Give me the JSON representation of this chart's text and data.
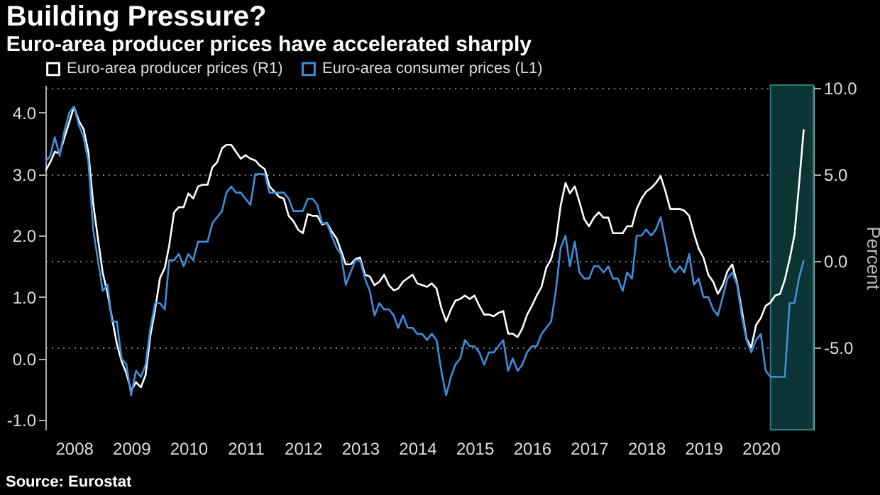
{
  "chart_data": {
    "type": "line",
    "title": "Building Pressure?",
    "subtitle": "Euro-area producer prices have accelerated sharply",
    "y2label": "Percent",
    "annotations": [
      "Source: Eurostat"
    ],
    "x": [
      "2008-01",
      "2008-02",
      "2008-03",
      "2008-04",
      "2008-05",
      "2008-06",
      "2008-07",
      "2008-08",
      "2008-09",
      "2008-10",
      "2008-11",
      "2008-12",
      "2009-01",
      "2009-02",
      "2009-03",
      "2009-04",
      "2009-05",
      "2009-06",
      "2009-07",
      "2009-08",
      "2009-09",
      "2009-10",
      "2009-11",
      "2009-12",
      "2010-01",
      "2010-02",
      "2010-03",
      "2010-04",
      "2010-05",
      "2010-06",
      "2010-07",
      "2010-08",
      "2010-09",
      "2010-10",
      "2010-11",
      "2010-12",
      "2011-01",
      "2011-02",
      "2011-03",
      "2011-04",
      "2011-05",
      "2011-06",
      "2011-07",
      "2011-08",
      "2011-09",
      "2011-10",
      "2011-11",
      "2011-12",
      "2012-01",
      "2012-02",
      "2012-03",
      "2012-04",
      "2012-05",
      "2012-06",
      "2012-07",
      "2012-08",
      "2012-09",
      "2012-10",
      "2012-11",
      "2012-12",
      "2013-01",
      "2013-02",
      "2013-03",
      "2013-04",
      "2013-05",
      "2013-06",
      "2013-07",
      "2013-08",
      "2013-09",
      "2013-10",
      "2013-11",
      "2013-12",
      "2014-01",
      "2014-02",
      "2014-03",
      "2014-04",
      "2014-05",
      "2014-06",
      "2014-07",
      "2014-08",
      "2014-09",
      "2014-10",
      "2014-11",
      "2014-12",
      "2015-01",
      "2015-02",
      "2015-03",
      "2015-04",
      "2015-05",
      "2015-06",
      "2015-07",
      "2015-08",
      "2015-09",
      "2015-10",
      "2015-11",
      "2015-12",
      "2016-01",
      "2016-02",
      "2016-03",
      "2016-04",
      "2016-05",
      "2016-06",
      "2016-07",
      "2016-08",
      "2016-09",
      "2016-10",
      "2016-11",
      "2016-12",
      "2017-01",
      "2017-02",
      "2017-03",
      "2017-04",
      "2017-05",
      "2017-06",
      "2017-07",
      "2017-08",
      "2017-09",
      "2017-10",
      "2017-11",
      "2017-12",
      "2018-01",
      "2018-02",
      "2018-03",
      "2018-04",
      "2018-05",
      "2018-06",
      "2018-07",
      "2018-08",
      "2018-09",
      "2018-10",
      "2018-11",
      "2018-12",
      "2019-01",
      "2019-02",
      "2019-03",
      "2019-04",
      "2019-05",
      "2019-06",
      "2019-07",
      "2019-08",
      "2019-09",
      "2019-10",
      "2019-11",
      "2019-12",
      "2020-01",
      "2020-02",
      "2020-03",
      "2020-04",
      "2020-05",
      "2020-06",
      "2020-07",
      "2020-08",
      "2020-09",
      "2020-10",
      "2020-11",
      "2020-12",
      "2021-01",
      "2021-02",
      "2021-03",
      "2021-04"
    ],
    "series": [
      {
        "name": "Euro-area producer prices (R1)",
        "color": "#ffffff",
        "axis": "y2",
        "values": [
          5.2,
          5.7,
          6.3,
          6.2,
          7.1,
          8.0,
          8.9,
          8.1,
          7.6,
          6.3,
          3.3,
          1.3,
          -0.7,
          -1.9,
          -3.3,
          -4.8,
          -5.8,
          -6.5,
          -7.5,
          -7.0,
          -7.3,
          -6.6,
          -4.3,
          -2.8,
          -1.0,
          -0.4,
          0.9,
          2.8,
          3.1,
          3.1,
          3.9,
          3.6,
          4.3,
          4.4,
          4.4,
          5.4,
          5.7,
          6.5,
          6.7,
          6.7,
          6.3,
          5.9,
          6.1,
          5.9,
          5.8,
          5.5,
          5.3,
          4.3,
          4.0,
          3.7,
          3.6,
          2.6,
          2.3,
          1.8,
          1.6,
          2.7,
          2.6,
          2.6,
          2.1,
          2.2,
          1.7,
          1.3,
          0.6,
          -0.2,
          -0.2,
          0.1,
          0.2,
          -0.8,
          -0.9,
          -1.4,
          -1.2,
          -0.8,
          -1.4,
          -1.7,
          -1.6,
          -1.2,
          -1.0,
          -0.8,
          -1.3,
          -1.4,
          -1.5,
          -1.3,
          -1.6,
          -2.7,
          -3.5,
          -2.8,
          -2.3,
          -2.2,
          -2.0,
          -2.2,
          -2.0,
          -2.6,
          -3.1,
          -3.1,
          -3.2,
          -3.0,
          -2.9,
          -4.2,
          -4.2,
          -4.4,
          -3.9,
          -3.1,
          -2.6,
          -2.0,
          -1.5,
          -0.4,
          0.1,
          1.1,
          3.2,
          4.5,
          3.9,
          4.3,
          3.4,
          2.4,
          2.0,
          2.5,
          2.8,
          2.5,
          2.5,
          1.6,
          1.6,
          1.6,
          2.0,
          2.0,
          3.0,
          3.6,
          4.0,
          4.2,
          4.5,
          4.9,
          4.0,
          3.0,
          3.0,
          3.0,
          2.9,
          2.6,
          1.6,
          0.7,
          0.2,
          -0.8,
          -1.2,
          -1.9,
          -1.4,
          -0.6,
          -0.2,
          -1.3,
          -2.8,
          -4.5,
          -5.0,
          -3.7,
          -3.3,
          -2.6,
          -2.4,
          -2.0,
          -1.9,
          -1.1,
          0.1,
          1.5,
          4.3,
          7.6
        ]
      },
      {
        "name": "Euro-area consumer prices  (L1)",
        "color": "#3f8ede",
        "values": [
          3.2,
          3.3,
          3.6,
          3.3,
          3.7,
          4.0,
          4.1,
          3.8,
          3.6,
          3.2,
          2.1,
          1.6,
          1.1,
          1.2,
          0.6,
          0.6,
          0.0,
          -0.1,
          -0.6,
          -0.2,
          -0.3,
          -0.1,
          0.5,
          0.9,
          0.9,
          0.8,
          1.6,
          1.6,
          1.7,
          1.5,
          1.7,
          1.6,
          1.9,
          1.9,
          1.9,
          2.2,
          2.3,
          2.4,
          2.7,
          2.8,
          2.7,
          2.7,
          2.6,
          2.5,
          3.0,
          3.0,
          3.0,
          2.7,
          2.7,
          2.7,
          2.7,
          2.6,
          2.4,
          2.4,
          2.4,
          2.6,
          2.6,
          2.5,
          2.2,
          2.2,
          2.0,
          1.8,
          1.7,
          1.2,
          1.4,
          1.6,
          1.6,
          1.3,
          1.1,
          0.7,
          0.9,
          0.8,
          0.8,
          0.7,
          0.5,
          0.7,
          0.5,
          0.5,
          0.4,
          0.4,
          0.3,
          0.4,
          0.3,
          -0.2,
          -0.6,
          -0.3,
          -0.1,
          0.0,
          0.3,
          0.2,
          0.2,
          0.1,
          -0.1,
          0.1,
          0.1,
          0.2,
          0.3,
          -0.2,
          0.0,
          -0.2,
          -0.1,
          0.1,
          0.2,
          0.2,
          0.4,
          0.5,
          0.6,
          1.1,
          1.8,
          2.0,
          1.5,
          1.9,
          1.4,
          1.3,
          1.3,
          1.5,
          1.5,
          1.4,
          1.5,
          1.3,
          1.3,
          1.1,
          1.4,
          1.3,
          2.0,
          2.0,
          2.1,
          2.0,
          2.1,
          2.3,
          1.9,
          1.5,
          1.4,
          1.5,
          1.4,
          1.7,
          1.2,
          1.3,
          1.0,
          1.0,
          0.8,
          0.7,
          1.0,
          1.3,
          1.4,
          1.2,
          0.7,
          0.3,
          0.1,
          0.3,
          0.4,
          -0.2,
          -0.3,
          -0.3,
          -0.3,
          -0.3,
          0.9,
          0.9,
          1.3,
          1.6
        ]
      }
    ],
    "xlim": [
      "2008-01",
      "2021-06"
    ],
    "xticks": [
      {
        "value": "2008-07",
        "label": "2008"
      },
      {
        "value": "2009-07",
        "label": "2009"
      },
      {
        "value": "2010-07",
        "label": "2010"
      },
      {
        "value": "2011-07",
        "label": "2011"
      },
      {
        "value": "2012-07",
        "label": "2012"
      },
      {
        "value": "2013-07",
        "label": "2013"
      },
      {
        "value": "2014-07",
        "label": "2014"
      },
      {
        "value": "2015-07",
        "label": "2015"
      },
      {
        "value": "2016-07",
        "label": "2016"
      },
      {
        "value": "2017-07",
        "label": "2017"
      },
      {
        "value": "2018-07",
        "label": "2018"
      },
      {
        "value": "2019-07",
        "label": "2019"
      },
      {
        "value": "2020-07",
        "label": "2020"
      }
    ],
    "ylim": [
      -1.16,
      4.45
    ],
    "yticks": [
      {
        "value": -1,
        "label": "-1.0"
      },
      {
        "value": 0,
        "label": "0.0"
      },
      {
        "value": 1,
        "label": "1.0"
      },
      {
        "value": 2,
        "label": "2.0"
      },
      {
        "value": 3,
        "label": "3.0"
      },
      {
        "value": 4,
        "label": "4.0"
      }
    ],
    "y2lim": [
      -9.75,
      10.15
    ],
    "y2ticks": [
      {
        "value": -5,
        "label": "-5.0"
      },
      {
        "value": 0,
        "label": "0.0"
      },
      {
        "value": 5,
        "label": "5.0"
      },
      {
        "value": 10,
        "label": "10.0"
      }
    ],
    "bands": [
      {
        "axis": "x",
        "from": "2020-09",
        "to": "2021-06",
        "color": "#0c3434"
      }
    ],
    "grid": "y",
    "legend": "top left",
    "line_style": "solid"
  }
}
